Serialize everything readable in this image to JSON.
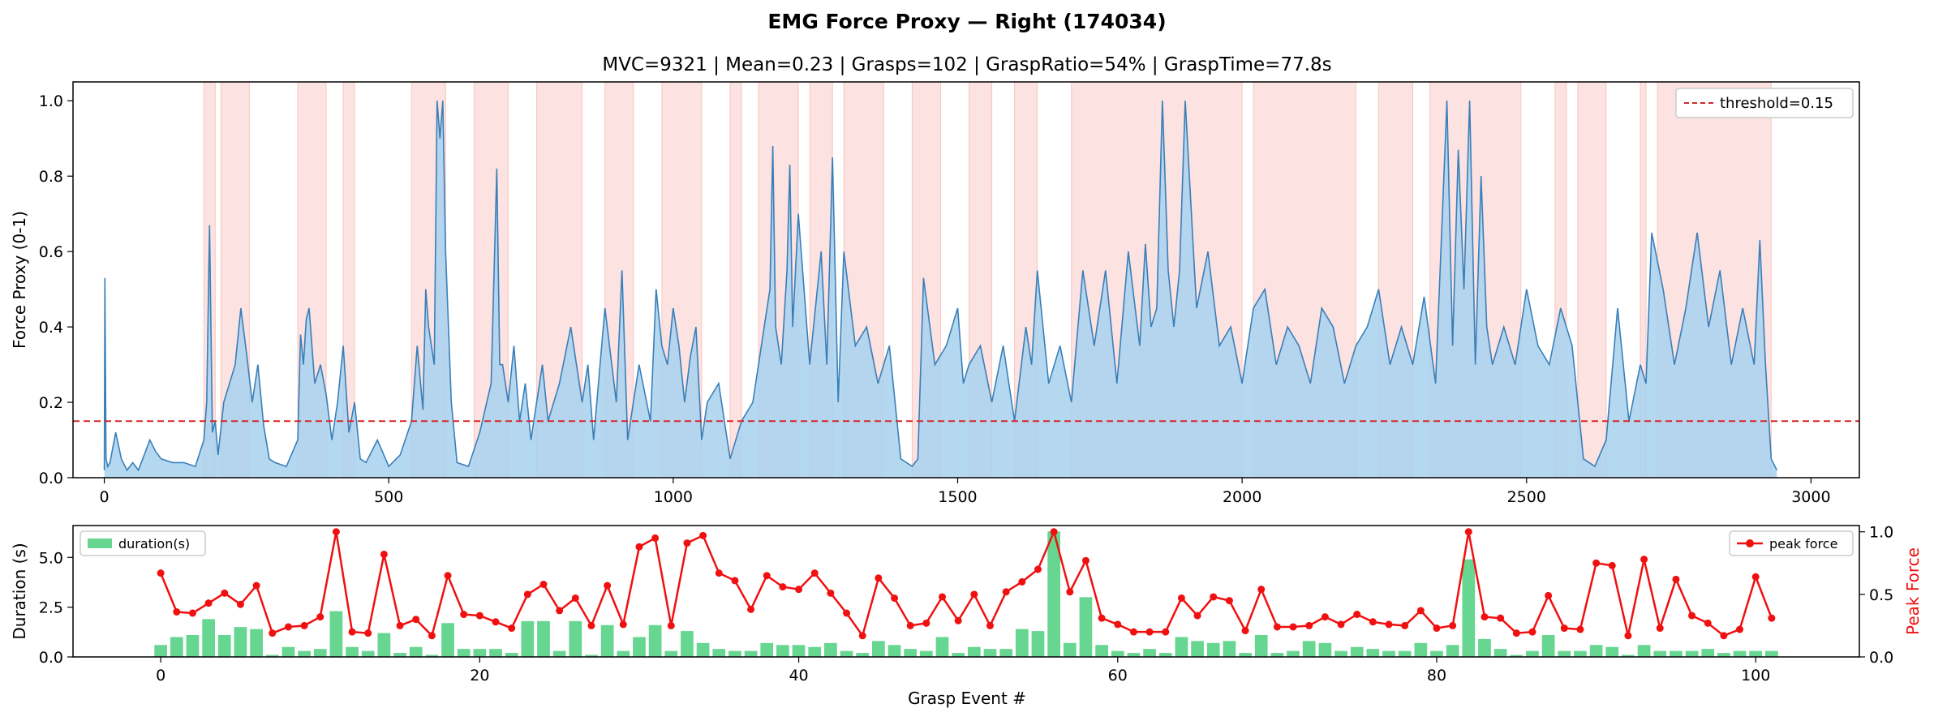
{
  "figure": {
    "title": "EMG Force Proxy — Right (174034)"
  },
  "chart_data": [
    {
      "type": "area",
      "subtitle": "MVC=9321 | Mean=0.23 | Grasps=102 | GraspRatio=54% | GraspTime=77.8s",
      "ylabel": "Force Proxy (0-1)",
      "xlabel": "",
      "xlim": [
        -55,
        3085
      ],
      "ylim": [
        0,
        1.05
      ],
      "xticks": [
        0,
        500,
        1000,
        1500,
        2000,
        2500,
        3000
      ],
      "yticks": [
        0.0,
        0.2,
        0.4,
        0.6,
        0.8,
        1.0
      ],
      "grid": false,
      "legend": {
        "placement": "top-right",
        "entries": [
          "threshold=0.15"
        ]
      },
      "threshold": 0.15,
      "colors": {
        "line": "#3a7fb8",
        "fill": "#a8d1ee",
        "grasp_overlay": "#f7b3ad",
        "threshold": "#d62728"
      },
      "series": [
        {
          "x": [
            0,
            1,
            3,
            6,
            10,
            20,
            30,
            40,
            50,
            55,
            60,
            70,
            80,
            90,
            100,
            120,
            140,
            160,
            175,
            180,
            185,
            190,
            195,
            200,
            210,
            220,
            230,
            240,
            250,
            260,
            270,
            280,
            290,
            300,
            320,
            340,
            345,
            350,
            355,
            360,
            370,
            380,
            390,
            400,
            410,
            420,
            430,
            440,
            450,
            460,
            480,
            500,
            520,
            540,
            550,
            560,
            565,
            570,
            580,
            585,
            590,
            595,
            600,
            610,
            620,
            640,
            660,
            680,
            690,
            695,
            700,
            710,
            720,
            730,
            740,
            750,
            760,
            770,
            780,
            800,
            820,
            840,
            850,
            860,
            880,
            900,
            910,
            920,
            940,
            960,
            970,
            980,
            990,
            1000,
            1010,
            1020,
            1030,
            1040,
            1050,
            1060,
            1080,
            1100,
            1120,
            1140,
            1160,
            1170,
            1175,
            1180,
            1190,
            1200,
            1205,
            1210,
            1220,
            1240,
            1260,
            1270,
            1280,
            1290,
            1300,
            1320,
            1340,
            1360,
            1380,
            1400,
            1420,
            1430,
            1440,
            1460,
            1480,
            1500,
            1510,
            1520,
            1540,
            1560,
            1580,
            1600,
            1620,
            1630,
            1640,
            1660,
            1680,
            1700,
            1720,
            1740,
            1760,
            1780,
            1800,
            1820,
            1830,
            1840,
            1850,
            1860,
            1870,
            1880,
            1890,
            1900,
            1920,
            1940,
            1960,
            1980,
            2000,
            2020,
            2040,
            2060,
            2080,
            2100,
            2120,
            2140,
            2160,
            2180,
            2200,
            2220,
            2240,
            2260,
            2280,
            2300,
            2320,
            2340,
            2360,
            2370,
            2380,
            2390,
            2400,
            2410,
            2420,
            2430,
            2440,
            2460,
            2480,
            2500,
            2520,
            2540,
            2560,
            2580,
            2600,
            2620,
            2640,
            2660,
            2680,
            2700,
            2710,
            2720,
            2740,
            2760,
            2780,
            2800,
            2820,
            2840,
            2860,
            2880,
            2900,
            2910,
            2920,
            2930,
            2940
          ],
          "y": [
            0.02,
            0.53,
            0.05,
            0.03,
            0.04,
            0.12,
            0.05,
            0.02,
            0.04,
            0.03,
            0.02,
            0.06,
            0.1,
            0.07,
            0.05,
            0.04,
            0.04,
            0.03,
            0.1,
            0.2,
            0.67,
            0.12,
            0.15,
            0.06,
            0.2,
            0.25,
            0.3,
            0.45,
            0.33,
            0.2,
            0.3,
            0.14,
            0.05,
            0.04,
            0.03,
            0.1,
            0.38,
            0.3,
            0.42,
            0.45,
            0.25,
            0.3,
            0.22,
            0.1,
            0.2,
            0.35,
            0.12,
            0.2,
            0.05,
            0.04,
            0.1,
            0.03,
            0.06,
            0.15,
            0.35,
            0.18,
            0.5,
            0.4,
            0.3,
            1.0,
            0.9,
            1.0,
            0.6,
            0.2,
            0.04,
            0.03,
            0.12,
            0.25,
            0.82,
            0.3,
            0.3,
            0.2,
            0.35,
            0.15,
            0.25,
            0.1,
            0.2,
            0.3,
            0.15,
            0.25,
            0.4,
            0.2,
            0.3,
            0.1,
            0.45,
            0.2,
            0.55,
            0.1,
            0.3,
            0.15,
            0.5,
            0.35,
            0.3,
            0.45,
            0.35,
            0.2,
            0.32,
            0.4,
            0.1,
            0.2,
            0.25,
            0.05,
            0.15,
            0.2,
            0.4,
            0.5,
            0.88,
            0.4,
            0.3,
            0.55,
            0.83,
            0.4,
            0.7,
            0.3,
            0.6,
            0.3,
            0.85,
            0.2,
            0.6,
            0.35,
            0.4,
            0.25,
            0.35,
            0.05,
            0.03,
            0.05,
            0.53,
            0.3,
            0.35,
            0.45,
            0.25,
            0.3,
            0.35,
            0.2,
            0.35,
            0.15,
            0.4,
            0.3,
            0.55,
            0.25,
            0.35,
            0.2,
            0.55,
            0.35,
            0.55,
            0.25,
            0.6,
            0.35,
            0.62,
            0.4,
            0.45,
            1.0,
            0.55,
            0.4,
            0.55,
            1.0,
            0.45,
            0.6,
            0.35,
            0.4,
            0.25,
            0.45,
            0.5,
            0.3,
            0.4,
            0.35,
            0.25,
            0.45,
            0.4,
            0.25,
            0.35,
            0.4,
            0.5,
            0.3,
            0.4,
            0.3,
            0.48,
            0.25,
            1.0,
            0.35,
            0.87,
            0.5,
            1.0,
            0.3,
            0.8,
            0.4,
            0.3,
            0.4,
            0.3,
            0.5,
            0.35,
            0.3,
            0.45,
            0.35,
            0.05,
            0.03,
            0.1,
            0.45,
            0.15,
            0.3,
            0.25,
            0.65,
            0.5,
            0.3,
            0.45,
            0.65,
            0.4,
            0.55,
            0.3,
            0.45,
            0.3,
            0.63,
            0.3,
            0.05,
            0.02
          ]
        }
      ],
      "grasp_regions": [
        [
          175,
          195
        ],
        [
          205,
          255
        ],
        [
          340,
          390
        ],
        [
          420,
          440
        ],
        [
          540,
          600
        ],
        [
          650,
          710
        ],
        [
          760,
          840
        ],
        [
          880,
          930
        ],
        [
          980,
          1050
        ],
        [
          1100,
          1120
        ],
        [
          1150,
          1220
        ],
        [
          1240,
          1280
        ],
        [
          1300,
          1370
        ],
        [
          1420,
          1470
        ],
        [
          1520,
          1560
        ],
        [
          1600,
          1640
        ],
        [
          1700,
          2000
        ],
        [
          2020,
          2200
        ],
        [
          2240,
          2300
        ],
        [
          2330,
          2490
        ],
        [
          2550,
          2570
        ],
        [
          2590,
          2640
        ],
        [
          2700,
          2710
        ],
        [
          2730,
          2930
        ]
      ]
    },
    {
      "type": "bar",
      "xlabel": "Grasp Event #",
      "ylabel": "Duration (s)",
      "y2label": "Peak Force",
      "xlim": [
        -5.5,
        106.5
      ],
      "ylim": [
        0,
        6.6
      ],
      "y2lim": [
        0,
        1.05
      ],
      "xticks": [
        0,
        20,
        40,
        60,
        80,
        100
      ],
      "yticks": [
        0.0,
        2.5,
        5.0
      ],
      "y2ticks": [
        0.0,
        0.5,
        1.0
      ],
      "grid": false,
      "legend": [
        {
          "label": "duration(s)",
          "placement": "top-left"
        },
        {
          "label": "peak force",
          "placement": "top-right"
        }
      ],
      "colors": {
        "bars": "#66d690",
        "peak": "#f01010"
      },
      "x": [
        0,
        1,
        2,
        3,
        4,
        5,
        6,
        7,
        8,
        9,
        10,
        11,
        12,
        13,
        14,
        15,
        16,
        17,
        18,
        19,
        20,
        21,
        22,
        23,
        24,
        25,
        26,
        27,
        28,
        29,
        30,
        31,
        32,
        33,
        34,
        35,
        36,
        37,
        38,
        39,
        40,
        41,
        42,
        43,
        44,
        45,
        46,
        47,
        48,
        49,
        50,
        51,
        52,
        53,
        54,
        55,
        56,
        57,
        58,
        59,
        60,
        61,
        62,
        63,
        64,
        65,
        66,
        67,
        68,
        69,
        70,
        71,
        72,
        73,
        74,
        75,
        76,
        77,
        78,
        79,
        80,
        81,
        82,
        83,
        84,
        85,
        86,
        87,
        88,
        89,
        90,
        91,
        92,
        93,
        94,
        95,
        96,
        97,
        98,
        99,
        100,
        101
      ],
      "series": [
        {
          "name": "duration(s)",
          "values": [
            0.6,
            1.0,
            1.1,
            1.9,
            1.1,
            1.5,
            1.4,
            0.1,
            0.5,
            0.3,
            0.4,
            2.3,
            0.5,
            0.3,
            1.2,
            0.2,
            0.5,
            0.1,
            1.7,
            0.4,
            0.4,
            0.4,
            0.2,
            1.8,
            1.8,
            0.3,
            1.8,
            0.1,
            1.6,
            0.3,
            1.0,
            1.6,
            0.3,
            1.3,
            0.7,
            0.4,
            0.3,
            0.3,
            0.7,
            0.6,
            0.6,
            0.5,
            0.7,
            0.3,
            0.2,
            0.8,
            0.6,
            0.4,
            0.3,
            1.0,
            0.2,
            0.5,
            0.4,
            0.4,
            1.4,
            1.3,
            6.3,
            0.7,
            3.0,
            0.6,
            0.3,
            0.2,
            0.4,
            0.2,
            1.0,
            0.8,
            0.7,
            0.8,
            0.2,
            1.1,
            0.2,
            0.3,
            0.8,
            0.7,
            0.3,
            0.5,
            0.4,
            0.3,
            0.3,
            0.7,
            0.3,
            0.6,
            4.9,
            0.9,
            0.4,
            0.1,
            0.3,
            1.1,
            0.3,
            0.3,
            0.6,
            0.5,
            0.1,
            0.6,
            0.3,
            0.3,
            0.3,
            0.4,
            0.2,
            0.3,
            0.3,
            0.3
          ]
        },
        {
          "name": "peak force",
          "axis": "y2",
          "values": [
            0.67,
            0.36,
            0.35,
            0.43,
            0.51,
            0.42,
            0.57,
            0.19,
            0.24,
            0.25,
            0.32,
            1.0,
            0.2,
            0.19,
            0.82,
            0.25,
            0.3,
            0.17,
            0.65,
            0.34,
            0.33,
            0.28,
            0.23,
            0.5,
            0.58,
            0.37,
            0.47,
            0.25,
            0.57,
            0.26,
            0.88,
            0.95,
            0.25,
            0.91,
            0.97,
            0.67,
            0.61,
            0.38,
            0.65,
            0.56,
            0.54,
            0.67,
            0.51,
            0.35,
            0.17,
            0.63,
            0.47,
            0.25,
            0.27,
            0.48,
            0.29,
            0.5,
            0.25,
            0.52,
            0.6,
            0.7,
            1.0,
            0.52,
            0.77,
            0.31,
            0.26,
            0.2,
            0.2,
            0.2,
            0.47,
            0.33,
            0.48,
            0.45,
            0.21,
            0.54,
            0.24,
            0.24,
            0.25,
            0.32,
            0.26,
            0.34,
            0.28,
            0.26,
            0.25,
            0.37,
            0.23,
            0.25,
            1.0,
            0.32,
            0.31,
            0.19,
            0.2,
            0.49,
            0.23,
            0.22,
            0.75,
            0.73,
            0.17,
            0.78,
            0.23,
            0.62,
            0.33,
            0.27,
            0.17,
            0.22,
            0.64,
            0.31
          ]
        }
      ]
    }
  ]
}
